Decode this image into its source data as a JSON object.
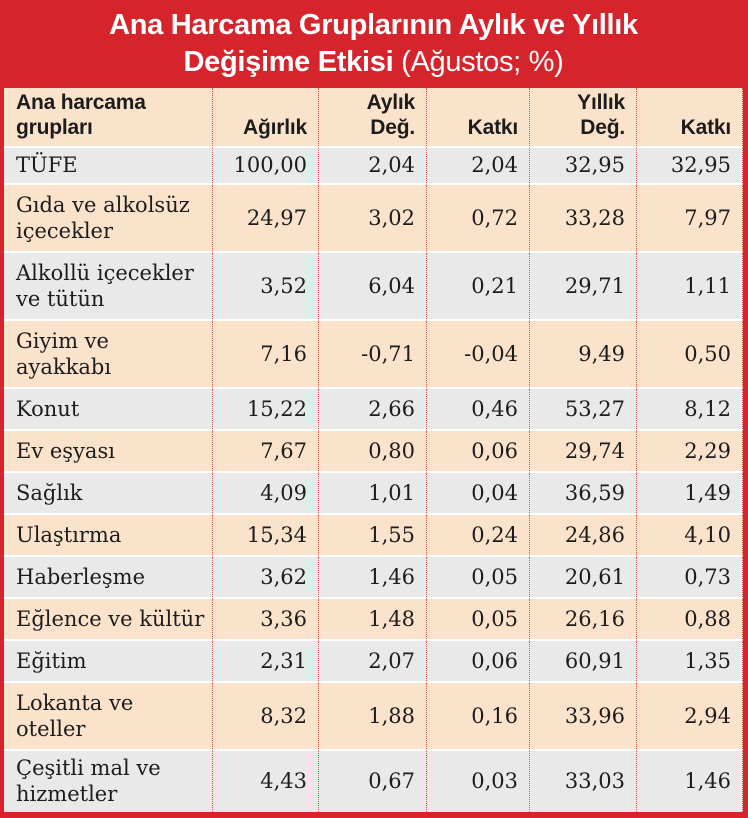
{
  "header": {
    "title_line1": "Ana Harcama Gruplarının Aylık ve Yıllık",
    "title_line2_bold": "Değişime Etkisi",
    "title_line2_normal": " (Ağustos; %)"
  },
  "table": {
    "column_headers": {
      "group": "Ana harcama\ngrupları",
      "weight": "Ağırlık",
      "monthly_change": "Aylık\nDeğ.",
      "monthly_contribution": "Katkı",
      "annual_change": "Yıllık\nDeğ.",
      "annual_contribution": "Katkı"
    },
    "rows": [
      {
        "label": "TÜFE",
        "values": [
          "100,00",
          "2,04",
          "2,04",
          "32,95",
          "32,95"
        ]
      },
      {
        "label": "Gıda ve alkolsüz\niçecekler",
        "values": [
          "24,97",
          "3,02",
          "0,72",
          "33,28",
          "7,97"
        ]
      },
      {
        "label": "Alkollü içecekler\nve tütün",
        "values": [
          "3,52",
          "6,04",
          "0,21",
          "29,71",
          "1,11"
        ]
      },
      {
        "label": "Giyim ve\nayakkabı",
        "values": [
          "7,16",
          "-0,71",
          "-0,04",
          "9,49",
          "0,50"
        ]
      },
      {
        "label": "Konut",
        "values": [
          "15,22",
          "2,66",
          "0,46",
          "53,27",
          "8,12"
        ]
      },
      {
        "label": "Ev eşyası",
        "values": [
          "7,67",
          "0,80",
          "0,06",
          "29,74",
          "2,29"
        ]
      },
      {
        "label": "Sağlık",
        "values": [
          "4,09",
          "1,01",
          "0,04",
          "36,59",
          "1,49"
        ]
      },
      {
        "label": "Ulaştırma",
        "values": [
          "15,34",
          "1,55",
          "0,24",
          "24,86",
          "4,10"
        ]
      },
      {
        "label": "Haberleşme",
        "values": [
          "3,62",
          "1,46",
          "0,05",
          "20,61",
          "0,73"
        ]
      },
      {
        "label": "Eğlence ve kültür",
        "values": [
          "3,36",
          "1,48",
          "0,05",
          "26,16",
          "0,88"
        ]
      },
      {
        "label": "Eğitim",
        "values": [
          "2,31",
          "2,07",
          "0,06",
          "60,91",
          "1,35"
        ]
      },
      {
        "label": "Lokanta ve oteller",
        "values": [
          "8,32",
          "1,88",
          "0,16",
          "33,96",
          "2,94"
        ]
      },
      {
        "label": "Çeşitli mal ve\nhizmetler",
        "values": [
          "4,43",
          "0,67",
          "0,03",
          "33,03",
          "1,46"
        ]
      }
    ]
  },
  "colors": {
    "frame_red": "#d6242c",
    "row_peach": "#fbe2cb",
    "row_gray": "#e9e9e9",
    "divider_dotted_red": "#e25045",
    "text": "#1c1c1c",
    "title_text": "#ffffff"
  },
  "chart_data": {
    "type": "table",
    "title": "Ana Harcama Gruplarının Aylık ve Yıllık Değişime Etkisi (Ağustos; %)",
    "columns": [
      "Ana harcama grupları",
      "Ağırlık",
      "Aylık Değ.",
      "Katkı",
      "Yıllık Değ.",
      "Katkı"
    ],
    "rows": [
      [
        "TÜFE",
        100.0,
        2.04,
        2.04,
        32.95,
        32.95
      ],
      [
        "Gıda ve alkolsüz içecekler",
        24.97,
        3.02,
        0.72,
        33.28,
        7.97
      ],
      [
        "Alkollü içecekler ve tütün",
        3.52,
        6.04,
        0.21,
        29.71,
        1.11
      ],
      [
        "Giyim ve ayakkabı",
        7.16,
        -0.71,
        -0.04,
        9.49,
        0.5
      ],
      [
        "Konut",
        15.22,
        2.66,
        0.46,
        53.27,
        8.12
      ],
      [
        "Ev eşyası",
        7.67,
        0.8,
        0.06,
        29.74,
        2.29
      ],
      [
        "Sağlık",
        4.09,
        1.01,
        0.04,
        36.59,
        1.49
      ],
      [
        "Ulaştırma",
        15.34,
        1.55,
        0.24,
        24.86,
        4.1
      ],
      [
        "Haberleşme",
        3.62,
        1.46,
        0.05,
        20.61,
        0.73
      ],
      [
        "Eğlence ve kültür",
        3.36,
        1.48,
        0.05,
        26.16,
        0.88
      ],
      [
        "Eğitim",
        2.31,
        2.07,
        0.06,
        60.91,
        1.35
      ],
      [
        "Lokanta ve oteller",
        8.32,
        1.88,
        0.16,
        33.96,
        2.94
      ],
      [
        "Çeşitli mal ve hizmetler",
        4.43,
        0.67,
        0.03,
        33.03,
        1.46
      ]
    ]
  }
}
